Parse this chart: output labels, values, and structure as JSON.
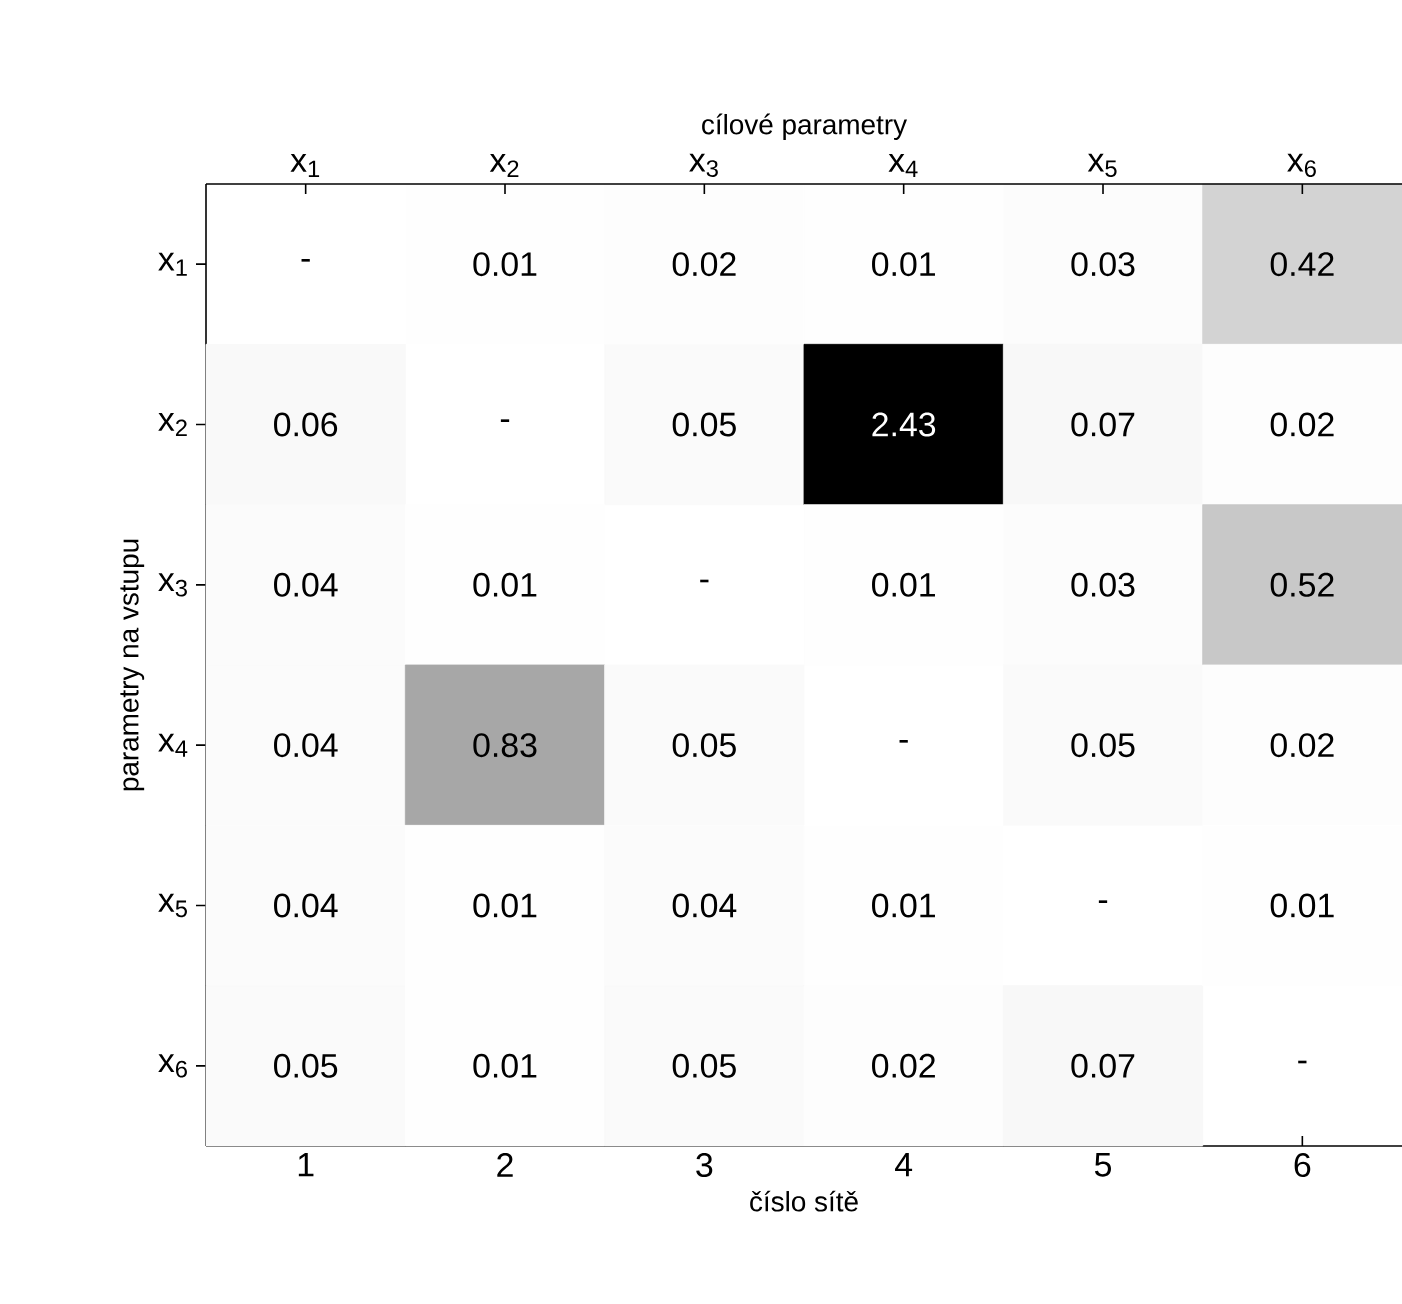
{
  "chart_data": {
    "type": "heatmap",
    "x2label": "cílové parametry",
    "xlabel": "číslo sítě",
    "ylabel": "parametry na vstupu",
    "categories": [
      "1",
      "2",
      "3",
      "4",
      "5",
      "6"
    ],
    "x2lim": [
      0.5,
      6.5
    ],
    "x2ticks": [
      {
        "value": 1,
        "label": "x$_{1}$"
      },
      {
        "value": 2,
        "label": "x$_{2}$"
      },
      {
        "value": 3,
        "label": "x$_{3}$"
      },
      {
        "value": 4,
        "label": "x$_{4}$"
      },
      {
        "value": 5,
        "label": "x$_{5}$"
      },
      {
        "value": 6,
        "label": "x$_{6}$"
      }
    ],
    "y_categories": [
      "x$_{1}$",
      "x$_{2}$",
      "x$_{3}$",
      "x$_{4}$",
      "x$_{5}$",
      "x$_{6}$"
    ],
    "cells": [
      [
        null,
        0.01,
        0.02,
        0.01,
        0.03,
        0.42
      ],
      [
        0.06,
        null,
        0.05,
        2.43,
        0.07,
        0.02
      ],
      [
        0.04,
        0.01,
        null,
        0.01,
        0.03,
        0.52
      ],
      [
        0.04,
        0.83,
        0.05,
        null,
        0.05,
        0.02
      ],
      [
        0.04,
        0.01,
        0.04,
        0.01,
        null,
        0.01
      ],
      [
        0.05,
        0.01,
        0.05,
        0.02,
        0.07,
        null
      ]
    ],
    "cell_labels": [
      [
        "-",
        "0.01",
        "0.02",
        "0.01",
        "0.03",
        "0.42"
      ],
      [
        "0.06",
        "-",
        "0.05",
        "2.43",
        "0.07",
        "0.02"
      ],
      [
        "0.04",
        "0.01",
        "-",
        "0.01",
        "0.03",
        "0.52"
      ],
      [
        "0.04",
        "0.83",
        "0.05",
        "-",
        "0.05",
        "0.02"
      ],
      [
        "0.04",
        "0.01",
        "0.04",
        "0.01",
        "-",
        "0.01"
      ],
      [
        "0.05",
        "0.01",
        "0.05",
        "0.02",
        "0.07",
        "-"
      ]
    ]
  }
}
